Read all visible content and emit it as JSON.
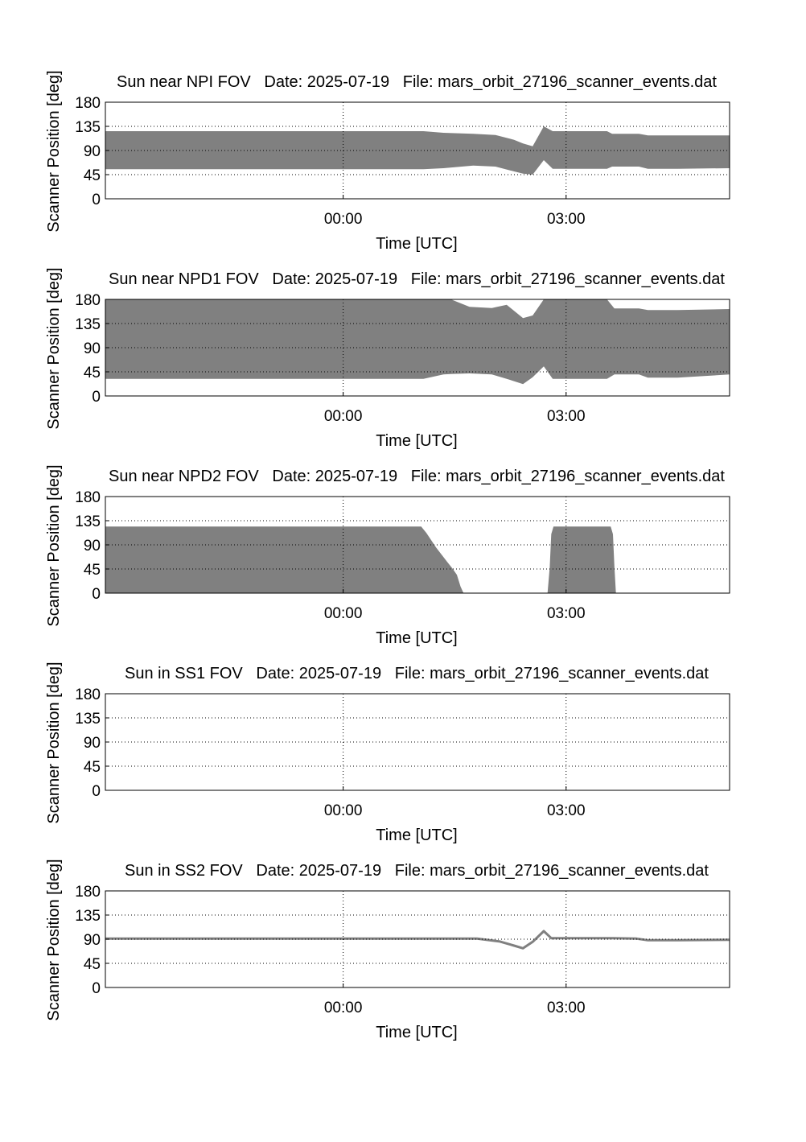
{
  "figure": {
    "fill_color": "#808080",
    "line_color": "#808080",
    "grid": true,
    "grid_style": "dotted"
  },
  "chart_data": [
    {
      "type": "area",
      "title": "Sun near NPI FOV   Date: 2025-07-19   File: mars_orbit_27196_scanner_events.dat",
      "xlabel": "Time [UTC]",
      "ylabel": "Scanner Position [deg]",
      "xlim": [
        -3.2,
        5.2
      ],
      "ylim": [
        0,
        180
      ],
      "xticks": [
        {
          "value": 0,
          "label": "00:00"
        },
        {
          "value": 3,
          "label": "03:00"
        }
      ],
      "yticks": [
        0,
        45,
        90,
        135,
        180
      ],
      "x": [
        -3.2,
        1.08,
        1.35,
        1.75,
        2.05,
        2.3,
        2.42,
        2.55,
        2.7,
        2.82,
        3.0,
        3.2,
        3.55,
        3.62,
        3.98,
        4.1,
        4.5,
        5.2
      ],
      "upper": [
        126,
        126,
        123,
        121,
        119,
        110,
        103,
        98,
        135,
        126,
        126,
        126,
        126,
        121,
        121,
        118,
        118,
        118
      ],
      "lower": [
        55,
        55,
        57,
        62,
        60,
        51,
        47,
        45,
        72,
        56,
        56,
        56,
        56,
        60,
        60,
        56,
        56,
        57
      ]
    },
    {
      "type": "area",
      "title": "Sun near NPD1 FOV   Date: 2025-07-19   File: mars_orbit_27196_scanner_events.dat",
      "xlabel": "Time [UTC]",
      "ylabel": "Scanner Position [deg]",
      "xlim": [
        -3.2,
        5.2
      ],
      "ylim": [
        0,
        180
      ],
      "xticks": [
        {
          "value": 0,
          "label": "00:00"
        },
        {
          "value": 3,
          "label": "03:00"
        }
      ],
      "yticks": [
        0,
        45,
        90,
        135,
        180
      ],
      "x": [
        -3.2,
        1.08,
        1.35,
        1.45,
        1.7,
        2.0,
        2.2,
        2.42,
        2.55,
        2.7,
        2.82,
        3.0,
        3.2,
        3.55,
        3.65,
        3.98,
        4.1,
        4.5,
        5.2
      ],
      "upper": [
        180,
        180,
        180,
        180,
        166,
        164,
        170,
        145,
        150,
        180,
        180,
        180,
        180,
        180,
        163,
        163,
        160,
        160,
        162
      ],
      "lower": [
        32,
        32,
        40,
        41,
        42,
        40,
        32,
        22,
        35,
        55,
        32,
        32,
        32,
        32,
        40,
        40,
        34,
        34,
        40
      ]
    },
    {
      "type": "area",
      "title": "Sun near NPD2 FOV   Date: 2025-07-19   File: mars_orbit_27196_scanner_events.dat",
      "xlabel": "Time [UTC]",
      "ylabel": "Scanner Position [deg]",
      "xlim": [
        -3.2,
        5.2
      ],
      "ylim": [
        0,
        180
      ],
      "xticks": [
        {
          "value": 0,
          "label": "00:00"
        },
        {
          "value": 3,
          "label": "03:00"
        }
      ],
      "yticks": [
        0,
        45,
        90,
        135,
        180
      ],
      "x": [
        -3.2,
        1.05,
        1.12,
        1.25,
        1.4,
        1.47,
        1.53,
        1.58,
        1.62,
        2.75,
        2.78,
        2.8,
        2.83,
        3.6,
        3.63,
        3.65,
        3.67,
        5.2
      ],
      "upper": [
        124,
        124,
        112,
        85,
        58,
        46,
        34,
        12,
        0,
        0,
        48,
        110,
        124,
        124,
        110,
        50,
        0,
        0
      ],
      "lower": [
        0,
        0,
        0,
        0,
        0,
        0,
        0,
        0,
        0,
        0,
        0,
        0,
        0,
        0,
        0,
        0,
        0,
        0
      ]
    },
    {
      "type": "area",
      "title": "Sun in SS1 FOV   Date: 2025-07-19   File: mars_orbit_27196_scanner_events.dat",
      "xlabel": "Time [UTC]",
      "ylabel": "Scanner Position [deg]",
      "xlim": [
        -3.2,
        5.2
      ],
      "ylim": [
        0,
        180
      ],
      "xticks": [
        {
          "value": 0,
          "label": "00:00"
        },
        {
          "value": 3,
          "label": "03:00"
        }
      ],
      "yticks": [
        0,
        45,
        90,
        135,
        180
      ],
      "x": [],
      "upper": [],
      "lower": []
    },
    {
      "type": "line",
      "title": "Sun in SS2 FOV   Date: 2025-07-19   File: mars_orbit_27196_scanner_events.dat",
      "xlabel": "Time [UTC]",
      "ylabel": "Scanner Position [deg]",
      "xlim": [
        -3.2,
        5.2
      ],
      "ylim": [
        0,
        180
      ],
      "xticks": [
        {
          "value": 0,
          "label": "00:00"
        },
        {
          "value": 3,
          "label": "03:00"
        }
      ],
      "yticks": [
        0,
        45,
        90,
        135,
        180
      ],
      "x": [
        -3.2,
        1.8,
        2.1,
        2.3,
        2.42,
        2.55,
        2.7,
        2.8,
        3.0,
        3.6,
        3.95,
        4.1,
        4.5,
        5.2
      ],
      "y": [
        91,
        91,
        86,
        78,
        73,
        85,
        105,
        92,
        92,
        92,
        91,
        88,
        88,
        89
      ]
    }
  ]
}
